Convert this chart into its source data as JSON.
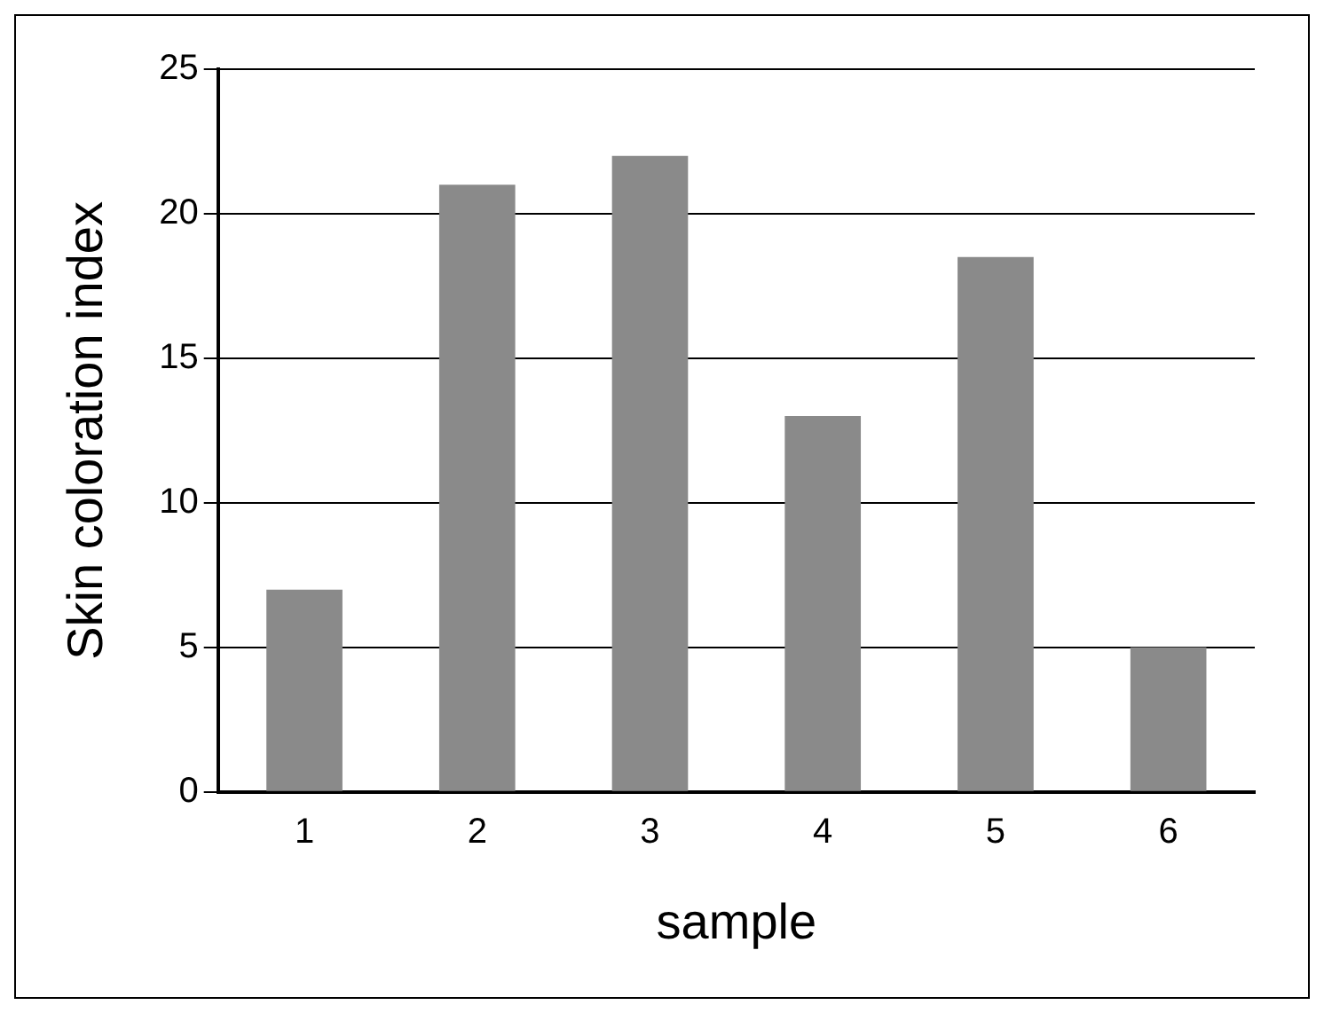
{
  "chart_data": {
    "type": "bar",
    "xlabel": "sample",
    "ylabel": "Skin coloration index",
    "categories": [
      "1",
      "2",
      "3",
      "4",
      "5",
      "6"
    ],
    "values": [
      7,
      21,
      22,
      13,
      18.5,
      5
    ],
    "color": "#8a8a8a",
    "ylim": [
      0,
      25
    ],
    "yticks": [
      0,
      5,
      10,
      15,
      20,
      25
    ],
    "grid": "y",
    "legend": false
  }
}
